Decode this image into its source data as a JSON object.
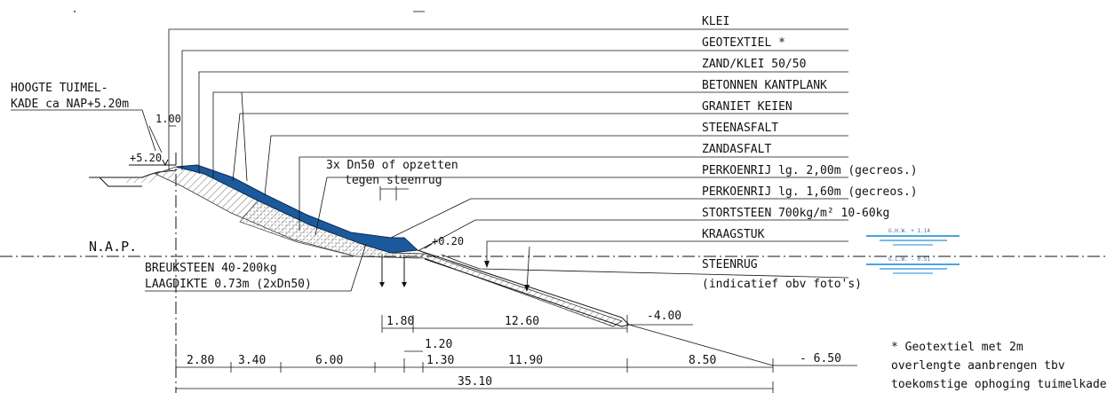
{
  "layers": [
    "KLEI",
    "GEOTEXTIEL *",
    "ZAND/KLEI 50/50",
    "BETONNEN KANTPLANK",
    "GRANIET KEIEN",
    "STEENASFALT",
    "ZANDASFALT",
    "PERKOENRIJ lg. 2,00m (gecreos.)",
    "PERKOENRIJ lg. 1,60m (gecreos.)",
    "STORTSTEEN 700kg/m² 10-60kg",
    "KRAAGSTUK",
    "STEENRUG"
  ],
  "steenrug_note": "(indicatief obv foto's)",
  "left_note": {
    "line1": "HOOGTE TUIMEL-",
    "line2": "KADE ca NAP+5.20m"
  },
  "nap_label": "N.A.P.",
  "breuksteen": {
    "line1": "BREUKSTEEN 40-200kg",
    "line2": "LAAGDIKTE 0.73m (2xDn50)"
  },
  "dn50_note": {
    "line1": "3x Dn50 of opzetten",
    "line2": "tegen steenrug"
  },
  "levels": {
    "top": "+5.20",
    "width_top": "1.00",
    "toe": "+0.20",
    "minus4": "-4.00",
    "minus65": "- 6.50",
    "ghw": "G.H.W. + 1.14",
    "glw": "G.L.W. - 0.51"
  },
  "dims_upper": [
    "1.80",
    "12.60"
  ],
  "dims_lower": [
    "2.80",
    "3.40",
    "6.00",
    "1.20",
    "1.30",
    "11.90",
    "8.50"
  ],
  "dim_total": "35.10",
  "footnote": {
    "line1": "*      Geotextiel met 2m",
    "line2": "overlengte aanbrengen tbv",
    "line3": "toekomstige ophoging tuimelkade"
  },
  "colors": {
    "asphalt": "#1a5a9c",
    "water": "#4aa3e0",
    "line": "#111111"
  }
}
